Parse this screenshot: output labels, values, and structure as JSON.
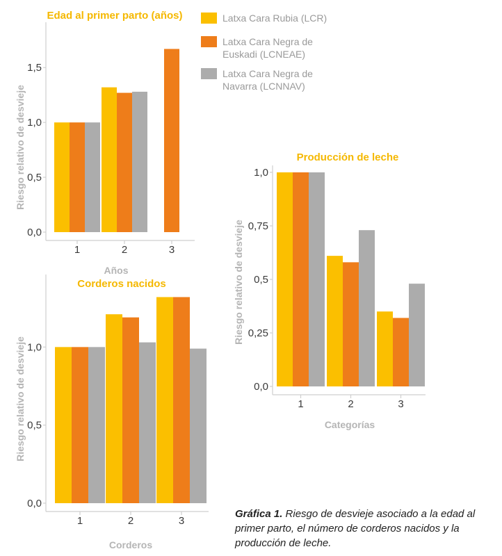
{
  "colors": {
    "LCR": "#fbbf00",
    "LCNEAE": "#ee7d1a",
    "LCNNAV": "#acacac"
  },
  "legend": [
    {
      "key": "LCR",
      "lines": [
        "Latxa Cara Rubia (LCR)"
      ]
    },
    {
      "key": "LCNEAE",
      "lines": [
        "Latxa Cara Negra de",
        "Euskadi (LCNEAE)"
      ]
    },
    {
      "key": "LCNNAV",
      "lines": [
        "Latxa Cara Negra de",
        "Navarra (LCNNAV)"
      ]
    }
  ],
  "caption": {
    "label": "Gráfica 1.",
    "text": "Riesgo de desvieje asociado a la edad al primer parto, el número de corderos nacidos y la producción de leche."
  },
  "chart_data": [
    {
      "id": "edad",
      "type": "bar",
      "title": "Edad al primer parto (años)",
      "xlabel": "Años",
      "ylabel": "Riesgo relativo de desvieje",
      "categories": [
        "1",
        "2",
        "3"
      ],
      "yticks": [
        0.0,
        0.5,
        1.0,
        1.5
      ],
      "ytick_labels": [
        "0,0",
        "0,5",
        "1,0",
        "1,5"
      ],
      "ylim": [
        0,
        1.85
      ],
      "series": [
        {
          "key": "LCR",
          "values": [
            1.0,
            1.32,
            null
          ]
        },
        {
          "key": "LCNEAE",
          "values": [
            1.0,
            1.27,
            1.67
          ]
        },
        {
          "key": "LCNNAV",
          "values": [
            1.0,
            1.28,
            null
          ]
        }
      ]
    },
    {
      "id": "corderos",
      "type": "bar",
      "title": "Corderos nacidos",
      "xlabel": "Corderos",
      "ylabel": "Riesgo relativo de desvieje",
      "categories": [
        "1",
        "2",
        "3"
      ],
      "yticks": [
        0.0,
        0.5,
        1.0
      ],
      "ytick_labels": [
        "0,0",
        "0,5",
        "1,0"
      ],
      "ylim": [
        0,
        1.42
      ],
      "series": [
        {
          "key": "LCR",
          "values": [
            1.0,
            1.21,
            1.32
          ]
        },
        {
          "key": "LCNEAE",
          "values": [
            1.0,
            1.19,
            1.32
          ]
        },
        {
          "key": "LCNNAV",
          "values": [
            1.0,
            1.03,
            0.99
          ]
        }
      ]
    },
    {
      "id": "leche",
      "type": "bar",
      "title": "Producción de leche",
      "xlabel": "Categorías",
      "ylabel": "Riesgo relativo de desvieje",
      "categories": [
        "1",
        "2",
        "3"
      ],
      "yticks": [
        0.0,
        0.25,
        0.5,
        0.75,
        1.0
      ],
      "ytick_labels": [
        "0,0",
        "0,25",
        "0,5",
        "0,75",
        "1,0"
      ],
      "ylim": [
        0,
        1.0
      ],
      "series": [
        {
          "key": "LCR",
          "values": [
            1.0,
            0.61,
            0.35
          ]
        },
        {
          "key": "LCNEAE",
          "values": [
            1.0,
            0.58,
            0.32
          ]
        },
        {
          "key": "LCNNAV",
          "values": [
            1.0,
            0.73,
            0.48
          ]
        }
      ]
    }
  ]
}
